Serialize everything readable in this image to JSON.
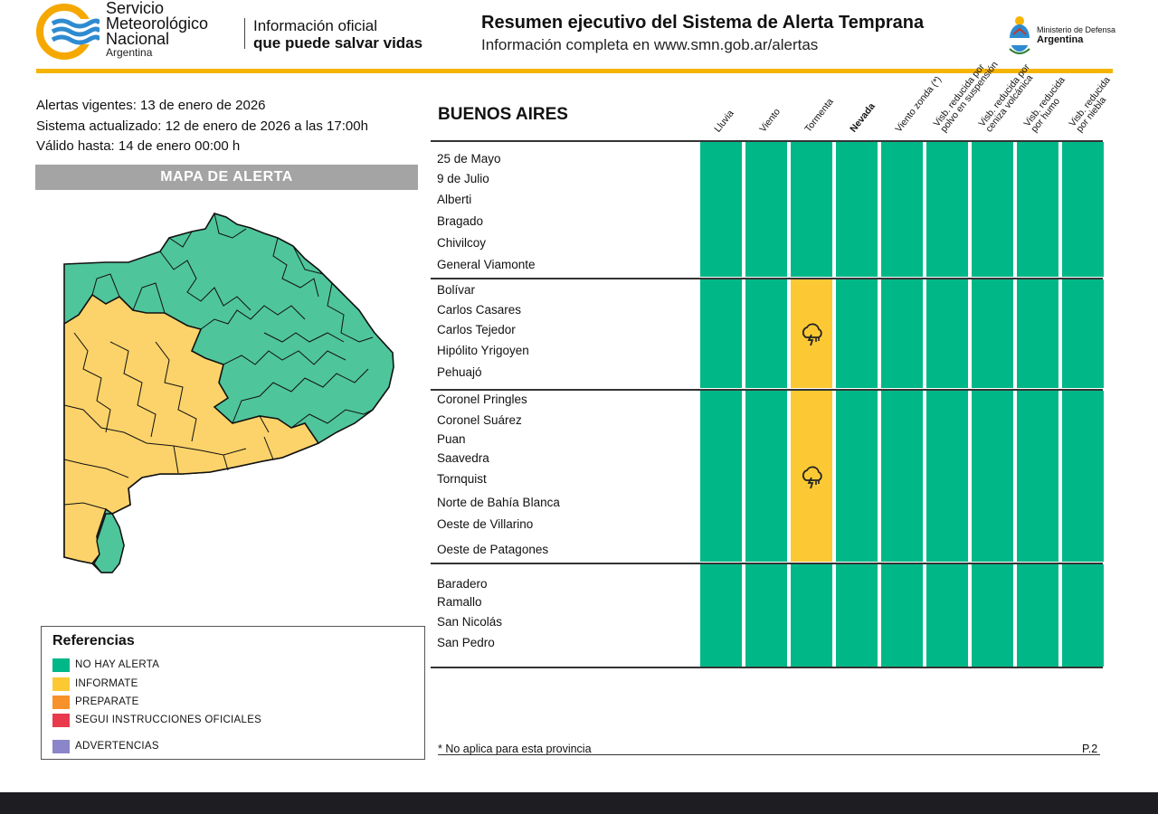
{
  "header": {
    "org_line1": "Servicio",
    "org_line2": "Meteorológico",
    "org_line3": "Nacional",
    "org_country": "Argentina",
    "tagline_line1": "Información oficial",
    "tagline_line2": "que puede salvar vidas",
    "title": "Resumen ejecutivo del Sistema de Alerta Temprana",
    "subtitle": "Información completa en www.smn.gob.ar/alertas",
    "ministry_line1": "Ministerio de Defensa",
    "ministry_line2": "Argentina"
  },
  "info": {
    "alerts_current": "Alertas vigentes: 13 de enero de 2026",
    "system_updated": "Sistema actualizado: 12 de enero de 2026 a las 17:00h",
    "valid_until": "Válido hasta: 14 de enero 00:00 h"
  },
  "map": {
    "title": "MAPA DE ALERTA"
  },
  "references": {
    "title": "Referencias",
    "items": [
      {
        "label": "NO HAY ALERTA",
        "color": "#00b887"
      },
      {
        "label": "INFORMATE",
        "color": "#fcc934"
      },
      {
        "label": "PREPARATE",
        "color": "#f7912a"
      },
      {
        "label": "SEGUI INSTRUCCIONES OFICIALES",
        "color": "#e93a4c"
      },
      {
        "label": "ADVERTENCIAS",
        "color": "#8b85c9"
      }
    ]
  },
  "table": {
    "province": "BUENOS AIRES",
    "columns": [
      {
        "l1": "Lluvia"
      },
      {
        "l1": "Viento"
      },
      {
        "l1": "Tormenta"
      },
      {
        "l1": "Nevada",
        "bold": true
      },
      {
        "l1": "Viento zonda (*)"
      },
      {
        "l1": "Visb. reducida por",
        "l2": "polvo en suspensión"
      },
      {
        "l1": "Visb. reducida por",
        "l2": "ceniza volcánica"
      },
      {
        "l1": "Visb. reducida",
        "l2": "por humo"
      },
      {
        "l1": "Visb. reducida",
        "l2": "por niebla"
      }
    ],
    "groups": [
      {
        "rows": [
          "25 de Mayo",
          "9 de Julio",
          "Alberti",
          "Bragado",
          "Chivilcoy",
          "General Viamonte"
        ],
        "levels": [
          "none",
          "none",
          "none",
          "none",
          "none",
          "none",
          "none",
          "none",
          "none"
        ]
      },
      {
        "rows": [
          "Bolívar",
          "Carlos Casares",
          "Carlos Tejedor",
          "Hipólito Yrigoyen",
          "Pehuajó"
        ],
        "levels": [
          "none",
          "none",
          "informate",
          "none",
          "none",
          "none",
          "none",
          "none",
          "none"
        ]
      },
      {
        "rows": [
          "Coronel Pringles",
          "Coronel Suárez",
          "Puan",
          "Saavedra",
          "Tornquist",
          "Norte de Bahía Blanca",
          "Oeste de Villarino",
          "Oeste de Patagones"
        ],
        "levels": [
          "none",
          "none",
          "informate",
          "none",
          "none",
          "none",
          "none",
          "none",
          "none"
        ]
      },
      {
        "rows": [
          "Baradero",
          "Ramallo",
          "San Nicolás",
          "San Pedro"
        ],
        "levels": [
          "none",
          "none",
          "none",
          "none",
          "none",
          "none",
          "none",
          "none",
          "none"
        ]
      }
    ],
    "alert_icon": "thunderstorm-icon",
    "footnote": "* No aplica para esta provincia",
    "page": "P.2"
  },
  "colors": {
    "no_alert": "#00b887",
    "informate": "#fcc934",
    "brand_gold": "#f5b400",
    "brand_blue": "#2e8bd0"
  }
}
